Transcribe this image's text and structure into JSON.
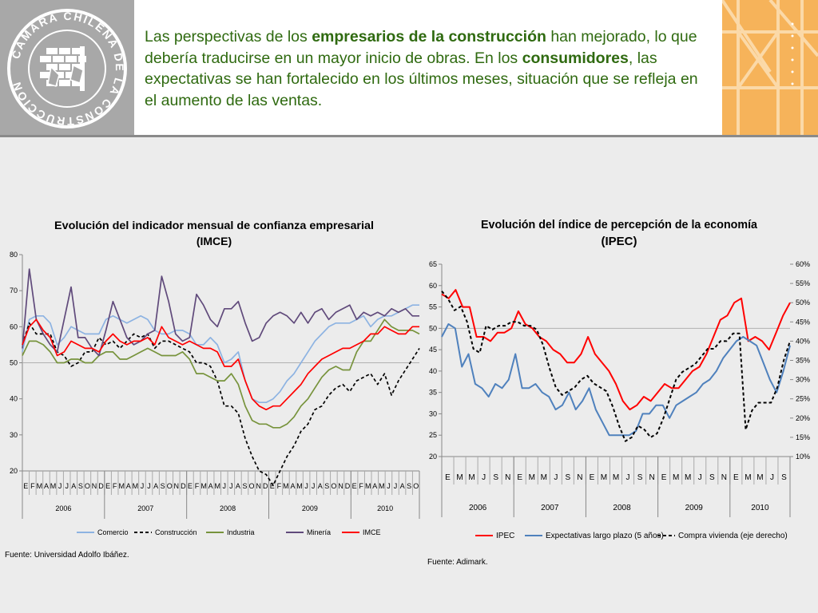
{
  "logo": {
    "text": "CAMARA CHILENA DE LA CONSTRUCCION"
  },
  "headline": {
    "p1": "Las perspectivas de los ",
    "b1": "empresarios de la construcción",
    "p2": " han mejorado, lo que debería traducirse en un mayor inicio de obras. En los ",
    "b2": "consumidores",
    "p3": ", las expectativas se han fortalecido en los últimos meses, situación que se refleja en el aumento de las ventas."
  },
  "chart_data": [
    {
      "type": "line",
      "title": "Evolución del indicador mensual de confianza empresarial",
      "subtitle": "(IMCE)",
      "ylim": [
        20,
        80
      ],
      "yticks": [
        "20",
        "30",
        "40",
        "50",
        "60",
        "70",
        "80"
      ],
      "reference_line": 50,
      "x_month_labels": [
        "E",
        "F",
        "M",
        "A",
        "M",
        "J",
        "J",
        "A",
        "S",
        "O",
        "N",
        "D",
        "E",
        "F",
        "M",
        "A",
        "M",
        "J",
        "J",
        "A",
        "S",
        "O",
        "N",
        "D",
        "E",
        "F",
        "M",
        "A",
        "M",
        "J",
        "J",
        "A",
        "S",
        "O",
        "N",
        "D",
        "E",
        "F",
        "M",
        "A",
        "M",
        "J",
        "J",
        "A",
        "S",
        "O",
        "N",
        "D",
        "E",
        "F",
        "M",
        "A",
        "M",
        "J",
        "J",
        "A",
        "S",
        "O"
      ],
      "x_year_labels": [
        "2006",
        "2007",
        "2008",
        "2009",
        "2010"
      ],
      "source": "Fuente: Universidad Adolfo Ibáñez.",
      "series": [
        {
          "name": "Comercio",
          "color": "#8db3e2",
          "dash": false,
          "values": [
            53,
            62,
            63,
            63,
            61,
            55,
            57,
            60,
            59,
            58,
            58,
            58,
            62,
            63,
            62,
            61,
            62,
            63,
            62,
            59,
            58,
            58,
            59,
            59,
            58,
            55,
            55,
            57,
            55,
            50,
            51,
            53,
            45,
            40,
            39,
            39,
            40,
            42,
            45,
            47,
            50,
            53,
            56,
            58,
            60,
            61,
            61,
            61,
            62,
            63,
            60,
            62,
            63,
            63,
            64,
            65,
            66,
            66
          ]
        },
        {
          "name": "Construcción",
          "color": "#000000",
          "dash": true,
          "values": [
            55,
            61,
            58,
            58,
            58,
            53,
            52,
            49,
            50,
            53,
            53,
            57,
            55,
            56,
            54,
            56,
            58,
            57,
            58,
            54,
            56,
            56,
            55,
            54,
            53,
            50,
            50,
            49,
            45,
            38,
            38,
            36,
            29,
            24,
            20,
            19,
            16,
            20,
            24,
            27,
            31,
            33,
            37,
            38,
            41,
            43,
            44,
            42,
            45,
            46,
            47,
            44,
            47,
            41,
            45,
            48,
            51,
            54
          ]
        },
        {
          "name": "Industria",
          "color": "#77933c",
          "dash": false,
          "values": [
            52,
            56,
            56,
            55,
            53,
            50,
            50,
            51,
            51,
            50,
            50,
            52,
            53,
            53,
            51,
            51,
            52,
            53,
            54,
            53,
            52,
            52,
            52,
            53,
            51,
            47,
            47,
            46,
            45,
            45,
            47,
            44,
            38,
            34,
            33,
            33,
            32,
            32,
            33,
            35,
            38,
            40,
            43,
            46,
            48,
            49,
            48,
            48,
            53,
            56,
            56,
            59,
            62,
            60,
            59,
            59,
            59,
            58
          ]
        },
        {
          "name": "Minería",
          "color": "#604a7b",
          "dash": false,
          "values": [
            54,
            76,
            62,
            58,
            55,
            53,
            62,
            71,
            57,
            57,
            54,
            52,
            59,
            67,
            62,
            57,
            55,
            56,
            58,
            59,
            74,
            67,
            58,
            56,
            57,
            69,
            66,
            62,
            60,
            65,
            65,
            67,
            61,
            56,
            57,
            61,
            63,
            64,
            63,
            61,
            64,
            61,
            64,
            65,
            62,
            64,
            65,
            66,
            62,
            64,
            63,
            64,
            63,
            65,
            64,
            65,
            63,
            63
          ]
        },
        {
          "name": "IMCE",
          "color": "#ff0000",
          "dash": false,
          "values": [
            55,
            60,
            62,
            59,
            57,
            52,
            53,
            56,
            55,
            54,
            54,
            53,
            56,
            58,
            56,
            55,
            56,
            56,
            57,
            55,
            60,
            57,
            56,
            55,
            56,
            55,
            54,
            54,
            53,
            49,
            49,
            51,
            45,
            40,
            38,
            37,
            38,
            38,
            40,
            42,
            44,
            47,
            49,
            51,
            52,
            53,
            54,
            54,
            55,
            56,
            58,
            58,
            60,
            59,
            58,
            58,
            60,
            60
          ]
        }
      ]
    },
    {
      "type": "line",
      "title": "Evolución del índice de percepción de la economía",
      "subtitle": "(IPEC)",
      "ylim": [
        20,
        65
      ],
      "yticks": [
        "20",
        "25",
        "30",
        "35",
        "40",
        "45",
        "50",
        "55",
        "60",
        "65"
      ],
      "y2lim": [
        10,
        60
      ],
      "y2ticks": [
        "10%",
        "15%",
        "20%",
        "25%",
        "30%",
        "35%",
        "40%",
        "45%",
        "50%",
        "55%",
        "60%"
      ],
      "reference_line": 50,
      "x_month_labels": [
        "E",
        "M",
        "M",
        "J",
        "S",
        "N",
        "E",
        "M",
        "M",
        "J",
        "S",
        "N",
        "E",
        "M",
        "M",
        "J",
        "S",
        "N",
        "E",
        "M",
        "M",
        "J",
        "S",
        "N",
        "E",
        "M",
        "M",
        "J",
        "S"
      ],
      "x_year_labels": [
        "2006",
        "2007",
        "2008",
        "2009",
        "2010"
      ],
      "source": "Fuente: Adimark.",
      "series": [
        {
          "name": "IPEC",
          "color": "#ff0000",
          "dash": false,
          "axis": "left",
          "values": [
            58,
            57,
            59,
            55,
            55,
            48,
            48,
            47,
            49,
            49,
            50,
            54,
            51,
            50,
            48,
            47,
            45,
            44,
            42,
            42,
            44,
            48,
            44,
            42,
            40,
            37,
            33,
            31,
            32,
            34,
            33,
            35,
            37,
            36,
            36,
            38,
            40,
            41,
            44,
            48,
            52,
            53,
            56,
            57,
            47,
            48,
            47,
            45,
            49,
            53,
            56
          ]
        },
        {
          "name": "Expectativas largo plazo (5 años)",
          "color": "#4f81bd",
          "dash": false,
          "axis": "left",
          "values": [
            48,
            51,
            50,
            41,
            44,
            37,
            36,
            34,
            37,
            36,
            38,
            44,
            36,
            36,
            37,
            35,
            34,
            31,
            32,
            35,
            31,
            33,
            36,
            31,
            28,
            25,
            25,
            25,
            25,
            26,
            30,
            30,
            32,
            32,
            29,
            32,
            33,
            34,
            35,
            37,
            38,
            40,
            43,
            45,
            47,
            48,
            47,
            46,
            42,
            38,
            35,
            40,
            46
          ]
        },
        {
          "name": "Compra vivienda (eje derecho)",
          "color": "#000000",
          "dash": true,
          "axis": "right",
          "values": [
            53,
            51,
            48,
            49,
            45,
            38,
            37,
            44,
            43,
            44,
            44,
            45,
            45,
            44,
            44,
            43,
            39,
            33,
            28,
            26,
            27,
            28,
            30,
            31,
            29,
            28,
            27,
            23,
            18,
            14,
            15,
            18,
            17,
            15,
            16,
            20,
            25,
            30,
            32,
            33,
            34,
            36,
            38,
            38,
            40,
            40,
            42,
            42,
            17,
            22,
            24,
            24,
            24,
            28,
            35,
            40
          ]
        }
      ]
    }
  ]
}
